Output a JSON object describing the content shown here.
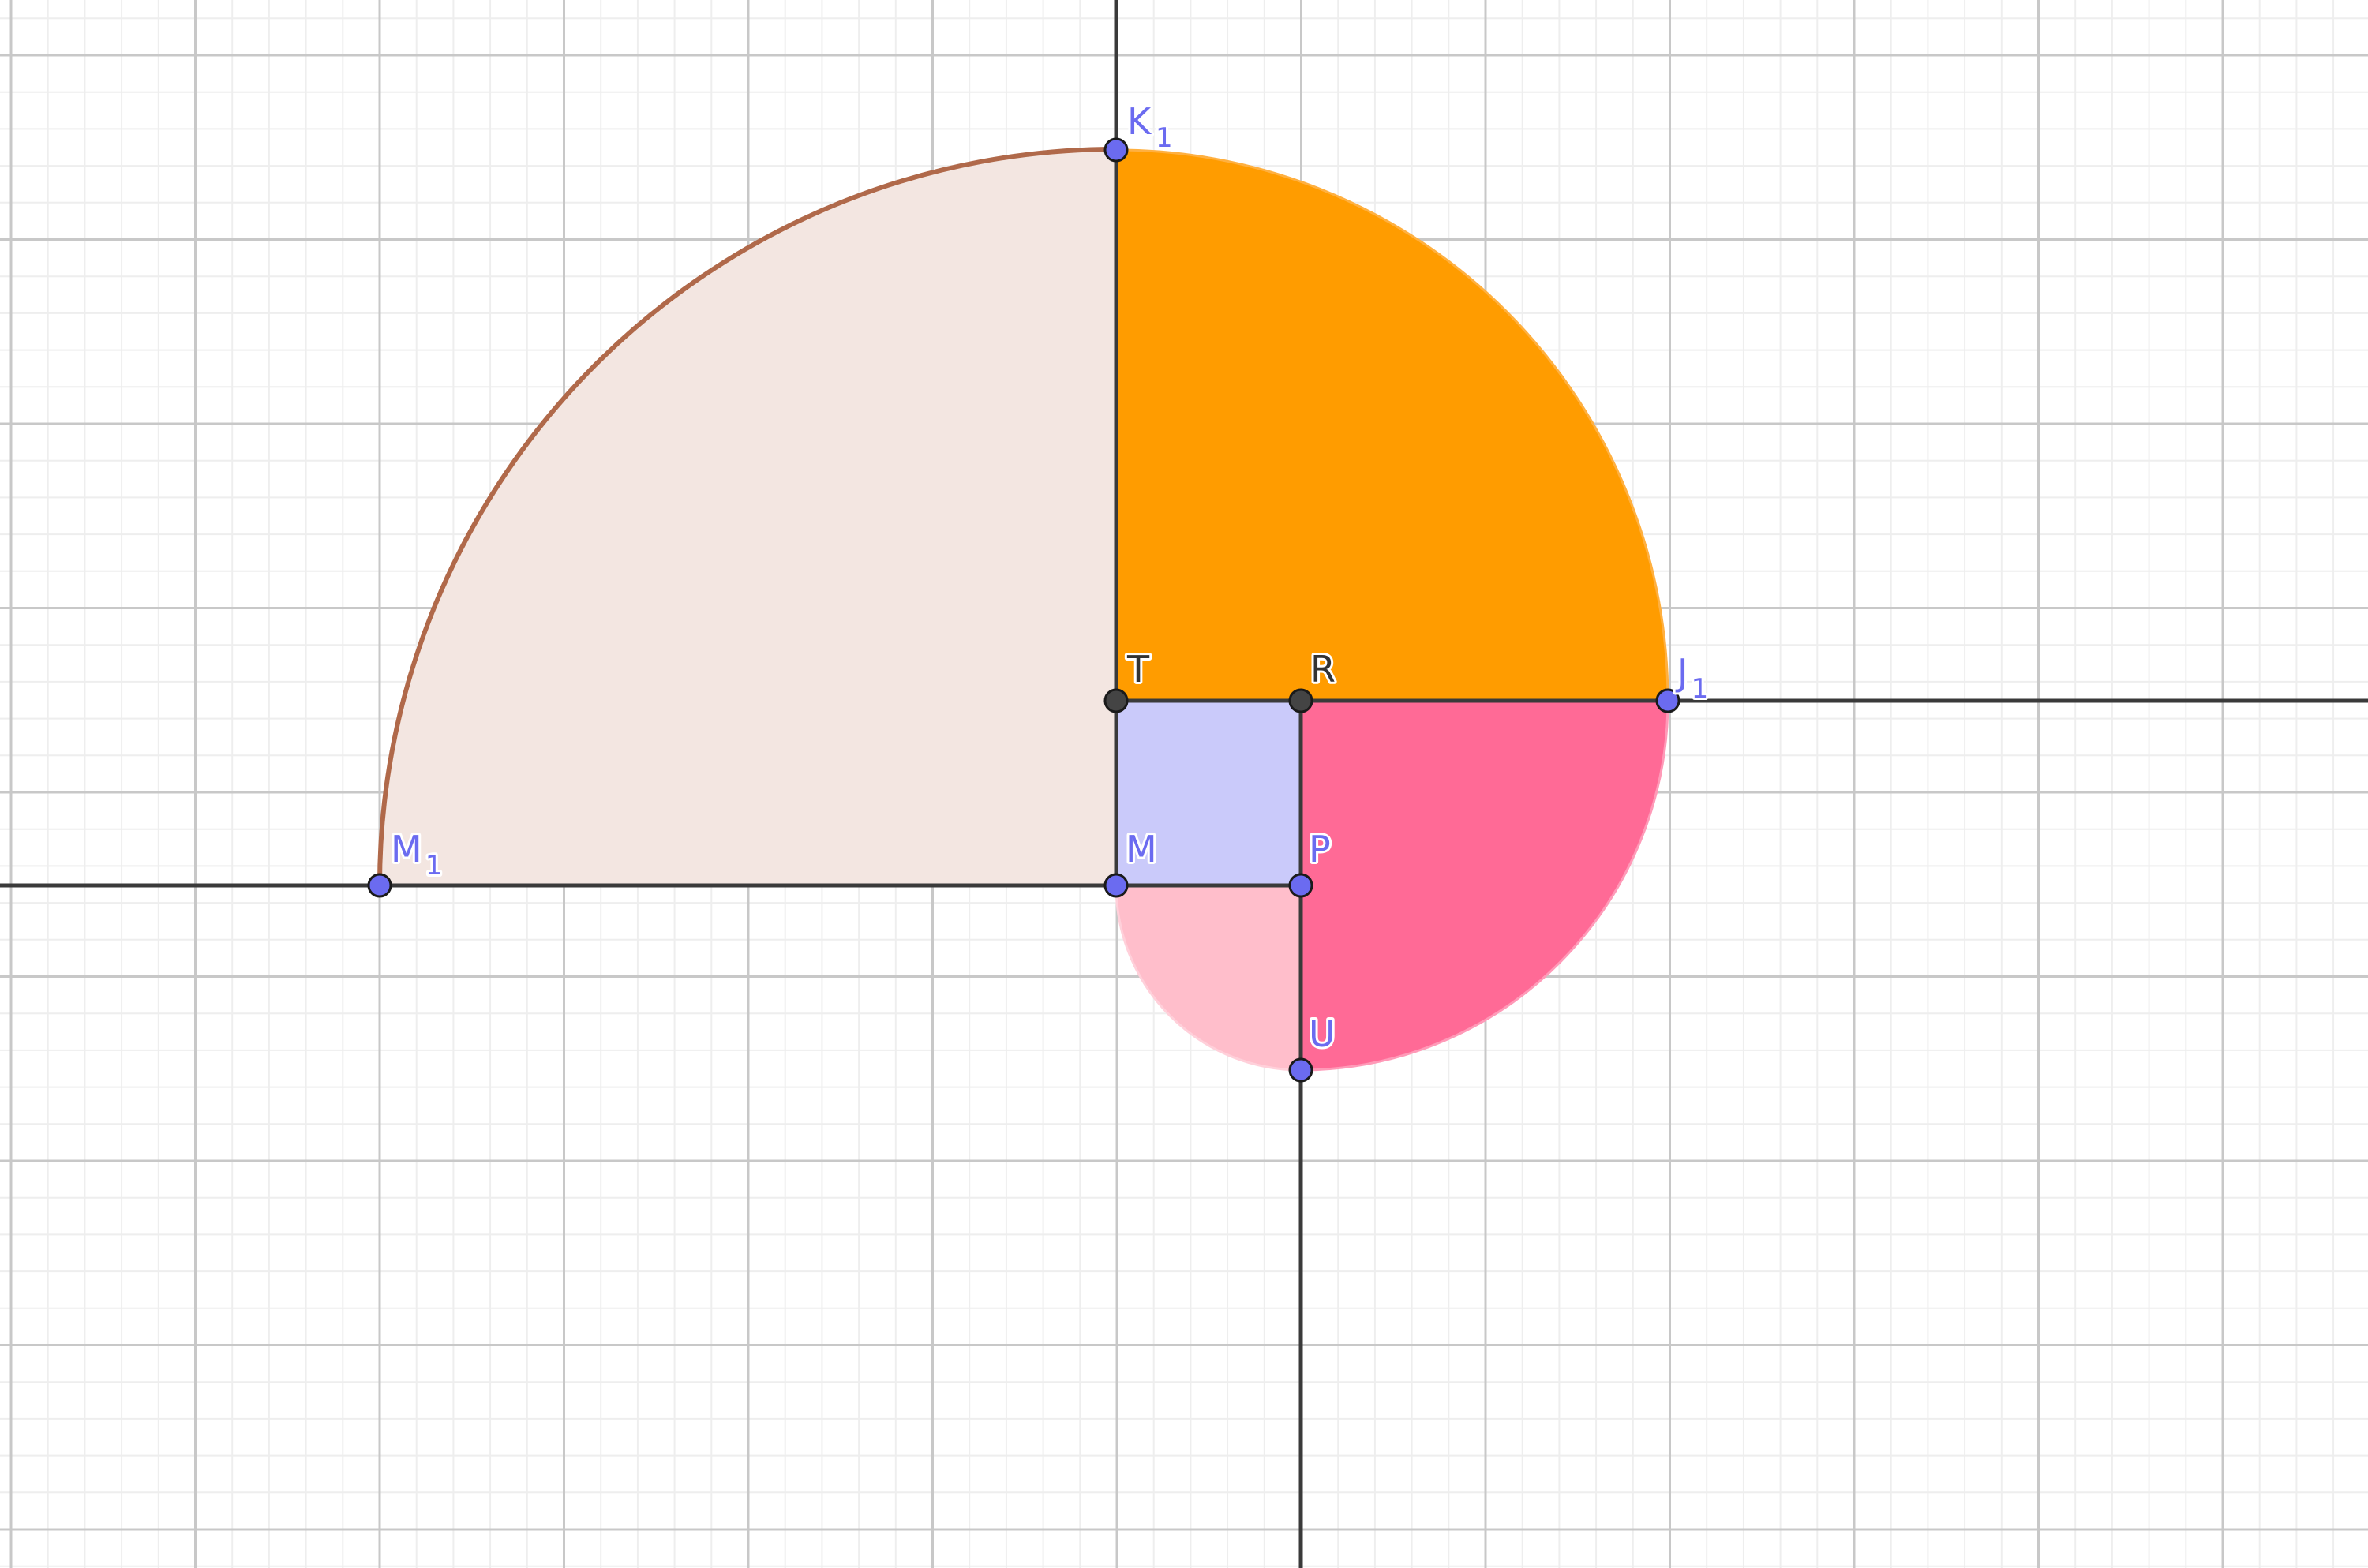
{
  "figure": {
    "grid": true,
    "colors": {
      "background": "#ffffff",
      "grid_minor": "#eeeeee",
      "grid_major": "#c8c8c8",
      "line": "#3a3a3a",
      "free_point": "#6b6bf0",
      "dependent_point": "#444444",
      "label_free": "#6b6bf0",
      "label_dependent": "#333333"
    },
    "regions": [
      {
        "id": "sector-M1",
        "fill": "#f3e6e1",
        "stroke": "#b0694a"
      },
      {
        "id": "sector-J1",
        "fill": "#ff9c00",
        "stroke": "#ffb040"
      },
      {
        "id": "sector-U-large",
        "fill": "#ff6a96",
        "stroke": "#ff9ab8"
      },
      {
        "id": "sector-U-small",
        "fill": "#ffbecb",
        "stroke": "#ffd0da"
      },
      {
        "id": "square-MPRT",
        "fill": "#cacafa",
        "stroke": "#3a3a3a"
      }
    ],
    "points": [
      {
        "id": "K1",
        "label": "K",
        "sub": "1",
        "kind": "free"
      },
      {
        "id": "J1",
        "label": "J",
        "sub": "1",
        "kind": "free"
      },
      {
        "id": "M1",
        "label": "M",
        "sub": "1",
        "kind": "free"
      },
      {
        "id": "T",
        "label": "T",
        "sub": "",
        "kind": "dependent"
      },
      {
        "id": "R",
        "label": "R",
        "sub": "",
        "kind": "dependent"
      },
      {
        "id": "M",
        "label": "M",
        "sub": "",
        "kind": "free"
      },
      {
        "id": "P",
        "label": "P",
        "sub": "",
        "kind": "free"
      },
      {
        "id": "U",
        "label": "U",
        "sub": "",
        "kind": "free"
      }
    ]
  }
}
